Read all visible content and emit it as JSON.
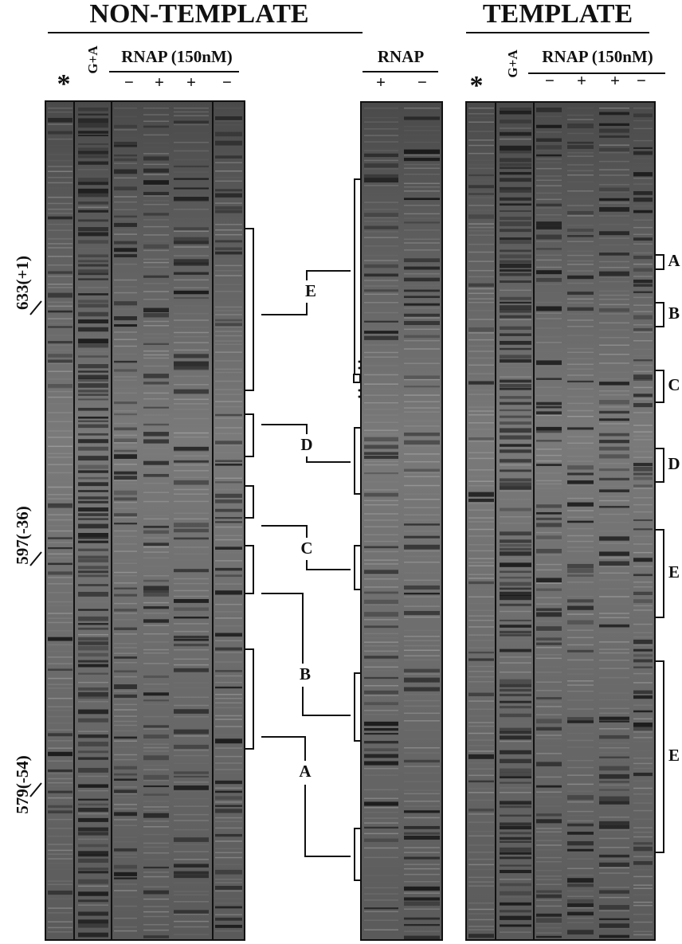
{
  "headers": {
    "left": "NON-TEMPLATE",
    "right": "TEMPLATE"
  },
  "left_panel": {
    "asterisk": "*",
    "ladder": "G+A",
    "condition": "RNAP (150nM)",
    "lanes": [
      "−",
      "+",
      "+",
      "−"
    ],
    "markers": [
      "633(+1)",
      "597(-36)",
      "579(-54)"
    ],
    "regions": [
      "E",
      "D",
      "C",
      "B",
      "A"
    ]
  },
  "middle_panel": {
    "condition": "RNAP",
    "lanes": [
      "+",
      "−"
    ]
  },
  "right_panel": {
    "asterisk": "*",
    "ladder": "G+A",
    "condition": "RNAP (150nM)",
    "lanes": [
      "−",
      "+",
      "+",
      "−"
    ],
    "regions": [
      "A",
      "B",
      "C",
      "D",
      "E",
      "E"
    ]
  }
}
